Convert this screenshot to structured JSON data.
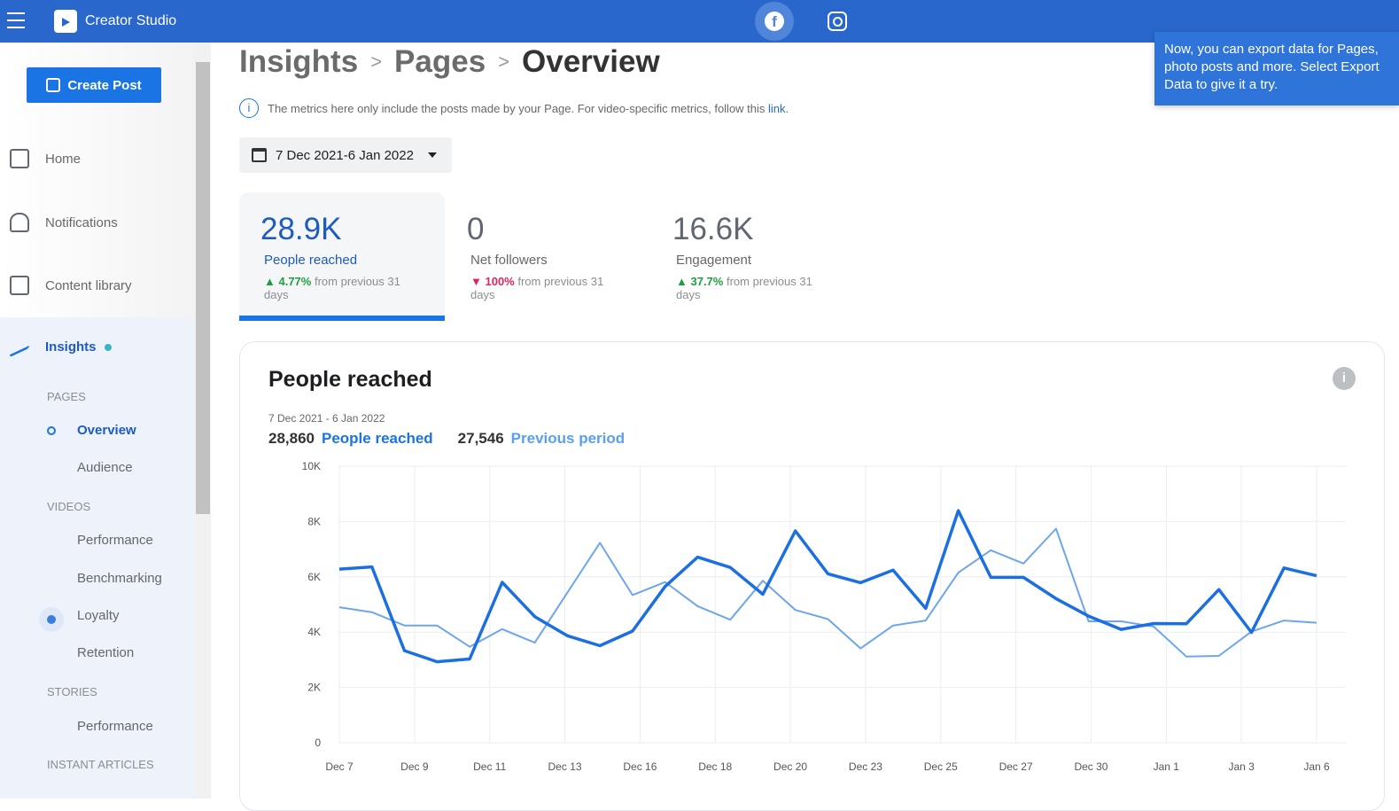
{
  "app": {
    "title": "Creator Studio"
  },
  "sidebar": {
    "create_post": "Create Post",
    "items": [
      {
        "label": "Home"
      },
      {
        "label": "Notifications"
      },
      {
        "label": "Content library"
      },
      {
        "label": "Insights"
      }
    ],
    "sections": {
      "pages": "PAGES",
      "videos": "VIDEOS",
      "stories": "STORIES",
      "instant": "INSTANT ARTICLES"
    },
    "sub": {
      "overview": "Overview",
      "audience": "Audience",
      "performance": "Performance",
      "benchmarking": "Benchmarking",
      "loyalty": "Loyalty",
      "retention": "Retention",
      "stories_performance": "Performance"
    }
  },
  "breadcrumb": [
    "Insights",
    "Pages",
    "Overview"
  ],
  "note": {
    "text": "The metrics here only include the posts made by your Page. For video-specific metrics, follow this",
    "link": "link"
  },
  "date_range": "7 Dec 2021-6 Jan 2022",
  "metrics": [
    {
      "value": "28.9K",
      "label": "People reached",
      "change": "4.77%",
      "dir": "up",
      "suffix": "from previous 31 days"
    },
    {
      "value": "0",
      "label": "Net followers",
      "change": "100%",
      "dir": "down",
      "suffix": "from previous 31 days"
    },
    {
      "value": "16.6K",
      "label": "Engagement",
      "change": "37.7%",
      "dir": "up",
      "suffix": "from previous 31 days"
    }
  ],
  "card": {
    "title": "People reached",
    "range": "7 Dec 2021 - 6 Jan 2022",
    "current_total": "28,860",
    "current_label": "People reached",
    "previous_total": "27,546",
    "previous_label": "Previous period"
  },
  "tooltip": "Now, you can export data for Pages, photo posts and more. Select Export Data to give it a try.",
  "chart_data": {
    "type": "line",
    "ylim": [
      0,
      10000
    ],
    "yticks": [
      "0",
      "2K",
      "4K",
      "6K",
      "8K",
      "10K"
    ],
    "xticks": [
      "Dec 7",
      "Dec 9",
      "Dec 11",
      "Dec 13",
      "Dec 16",
      "Dec 18",
      "Dec 20",
      "Dec 23",
      "Dec 25",
      "Dec 27",
      "Dec 30",
      "Jan 1",
      "Jan 3",
      "Jan 6"
    ],
    "grid": true,
    "series": [
      {
        "name": "People reached",
        "color": "#1b6fe0",
        "values": [
          6280,
          6360,
          3330,
          2930,
          3030,
          5800,
          4560,
          3870,
          3510,
          4040,
          5650,
          6710,
          6340,
          5370,
          7660,
          6110,
          5790,
          6240,
          4860,
          8390,
          5980,
          5980,
          5210,
          4580,
          4100,
          4310,
          4300,
          5540,
          3990,
          6320,
          6040
        ]
      },
      {
        "name": "Previous period",
        "color": "#6ea6ec",
        "values": [
          4900,
          4720,
          4240,
          4240,
          3470,
          4110,
          3620,
          5430,
          7230,
          5340,
          5810,
          4940,
          4450,
          5860,
          4800,
          4470,
          3410,
          4240,
          4420,
          6150,
          6960,
          6480,
          7740,
          4390,
          4390,
          4200,
          3120,
          3140,
          4020,
          4420,
          4340
        ]
      }
    ]
  }
}
